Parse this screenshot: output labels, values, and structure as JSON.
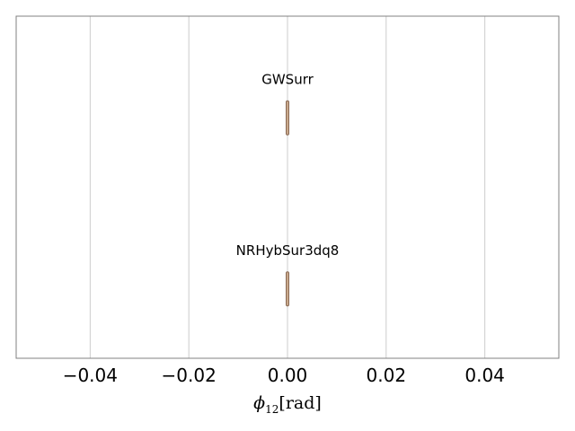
{
  "chart_data": {
    "type": "violin",
    "orientation": "horizontal",
    "title": "",
    "xlabel": {
      "symbol": "ϕ",
      "subscript": "12",
      "unit": "[rad]"
    },
    "ylabel": "",
    "xlim": [
      -0.055,
      0.055
    ],
    "xticks": [
      -0.04,
      -0.02,
      0.0,
      0.02,
      0.04
    ],
    "xtick_labels": [
      "−0.04",
      "−0.02",
      "0.00",
      "0.02",
      "0.04"
    ],
    "grid": {
      "x": true,
      "y": false
    },
    "series": [
      {
        "name": "GWSurr",
        "center": 0.0,
        "spread": 0.0
      },
      {
        "name": "NRHybSur3dq8",
        "center": 0.0,
        "spread": 0.0
      }
    ],
    "colors": {
      "violin_fill": "#c9a98c",
      "violin_edge": "#8a6a55",
      "grid": "#cccccc",
      "frame": "#808080"
    }
  }
}
